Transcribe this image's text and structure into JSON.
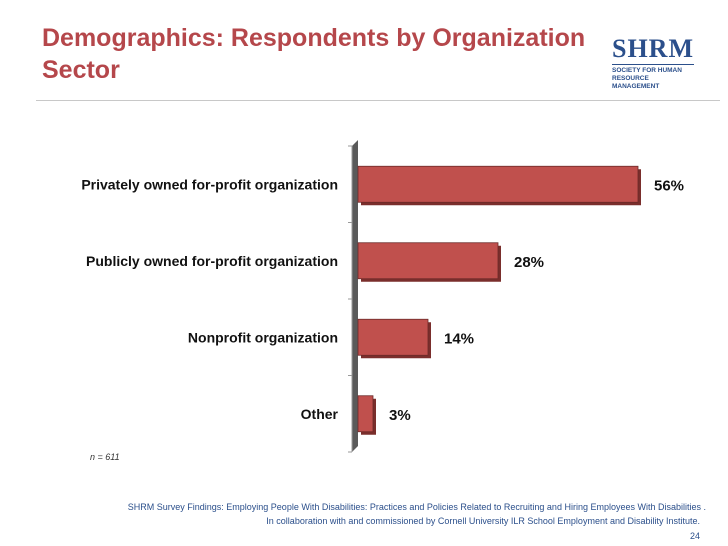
{
  "slide": {
    "title": "Demographics: Respondents by Organization Sector",
    "n_label": "n = 611",
    "footer_line1": "SHRM Survey Findings: Employing People With Disabilities: Practices and Policies Related to Recruiting and Hiring Employees With Disabilities .",
    "footer_line2": "In collaboration with and commissioned by Cornell University ILR School Employment and Disability Institute.",
    "page_number": "24"
  },
  "logo": {
    "wordmark": "SHRM",
    "tagline": "SOCIETY FOR HUMAN RESOURCE MANAGEMENT"
  },
  "colors": {
    "title": "#b5474b",
    "bar_fill": "#c0504d",
    "bar_shadow": "#7a2e2c",
    "footer_text": "#2b4f8b"
  },
  "chart_data": {
    "type": "bar",
    "orientation": "horizontal",
    "categories": [
      "Privately owned for-profit organization",
      "Publicly owned for-profit organization",
      "Nonprofit organization",
      "Other"
    ],
    "values": [
      56,
      28,
      14,
      3
    ],
    "data_labels": [
      "56%",
      "28%",
      "14%",
      "3%"
    ],
    "xlim": [
      0,
      60
    ],
    "grid": false
  }
}
